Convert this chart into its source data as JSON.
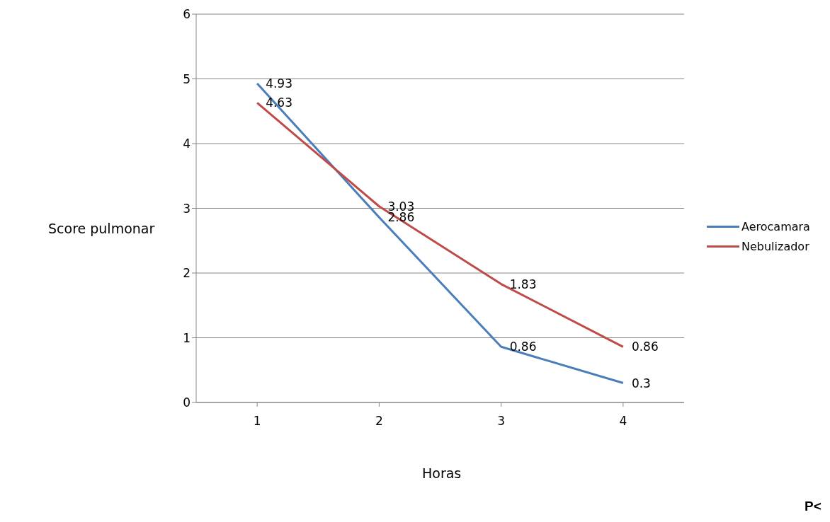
{
  "chart_data": {
    "type": "line",
    "xlabel": "Horas",
    "ylabel": "Score pulmonar",
    "categories": [
      "1",
      "2",
      "3",
      "4"
    ],
    "series": [
      {
        "name": "Aerocamara",
        "color": "#4a7ebb",
        "values": [
          4.93,
          2.86,
          0.86,
          0.3
        ]
      },
      {
        "name": "Nebulizador",
        "color": "#be4b48",
        "values": [
          4.63,
          3.03,
          1.83,
          0.86
        ]
      }
    ],
    "ylim": [
      0,
      6
    ],
    "yticks": [
      0,
      1,
      2,
      3,
      4,
      5,
      6
    ],
    "grid": "y",
    "legend": "right",
    "marker": "none",
    "line_style": "solid",
    "data_labels": true,
    "annotations": [
      "P<"
    ]
  }
}
